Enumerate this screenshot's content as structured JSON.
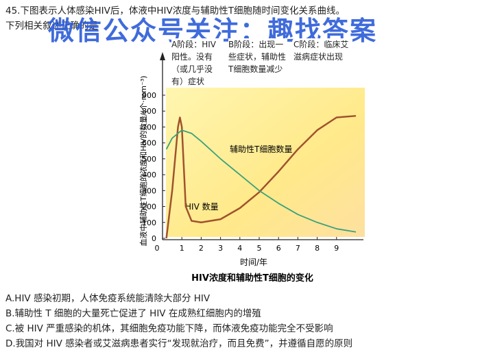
{
  "question": {
    "stem_line1": "45.下图表示人体感染HIV后，体液中HIV浓度与辅助性T细胞随时间变化关系曲线。",
    "stem_line2": "下列相关叙述正确的是",
    "options": [
      "A.HIV 感染初期，人体免疫系统能清除大部分 HIV",
      "B.辅助性 T 细胞的大量死亡促进了 HIV 在成熟红细胞内的增殖",
      "C.被 HIV 严重感染的机体，其细胞免疫功能下降，而体液免疫功能完全不受影响",
      "D.我国对 HIV 感染者或艾滋病患者实行“发现就治疗，而且免费”，并遵循自愿的原则"
    ]
  },
  "watermark": "微信公众号关注：趣找答案",
  "chart_data": {
    "type": "line",
    "title": "HIV浓度和辅助性T细胞的变化",
    "x_label": "时间/年",
    "y_label": "血液中辅助性T细胞的浓度和HIV的数量/(个·mm⁻³)",
    "xlim": [
      0,
      10
    ],
    "xticks": [
      0,
      1,
      2,
      3,
      4,
      5,
      6,
      7,
      8,
      9
    ],
    "ylim": [
      0,
      900
    ],
    "yticks": [
      0,
      100,
      200,
      300,
      400,
      500,
      600,
      700,
      800,
      900
    ],
    "annotations": [
      "A阶段：HIV阳性。没有（或几乎没有）症状",
      "B阶段：出现一些症状，辅助性T细胞数量减少",
      "C阶段：临床艾滋病症状出现"
    ],
    "series": [
      {
        "name": "HIV 数量",
        "color": "#a0522d",
        "x": [
          0.2,
          0.5,
          0.8,
          0.9,
          1.0,
          1.2,
          1.5,
          2,
          3,
          4,
          5,
          6,
          7,
          8,
          9,
          10
        ],
        "values": [
          0,
          300,
          700,
          760,
          700,
          200,
          110,
          100,
          120,
          190,
          290,
          420,
          560,
          680,
          760,
          770
        ]
      },
      {
        "name": "辅助性T细胞数量",
        "color": "#3aa07a",
        "x": [
          0.2,
          0.5,
          1,
          1.5,
          2,
          3,
          4,
          5,
          6,
          7,
          8,
          9,
          10
        ],
        "values": [
          560,
          630,
          680,
          660,
          610,
          500,
          400,
          300,
          220,
          150,
          100,
          60,
          40
        ]
      }
    ]
  }
}
